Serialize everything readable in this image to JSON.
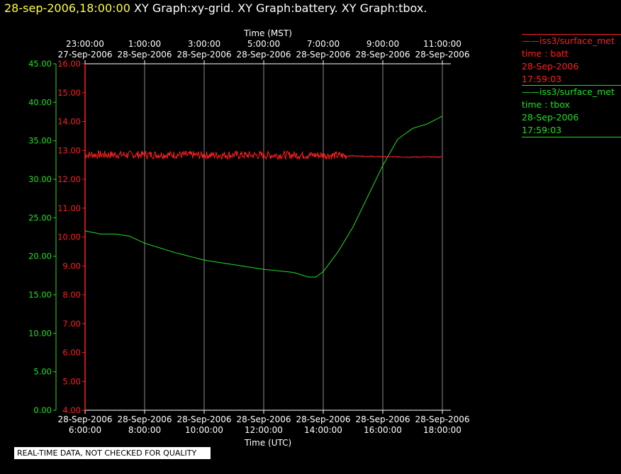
{
  "header": {
    "date_text": "28-sep-2006,18:00:00",
    "graphs_text": "XY Graph:xy-grid.  XY Graph:battery.  XY Graph:tbox."
  },
  "disclaimer": "REAL-TIME DATA, NOT CHECKED FOR QUALITY",
  "legend": [
    {
      "line1": "iss3/surface_met",
      "line2": "time : batt",
      "line3": "28-Sep-2006",
      "line4": "17:59:03",
      "color": "#ff2020"
    },
    {
      "line1": "iss3/surface_met",
      "line2": "time : tbox",
      "line3": "28-Sep-2006",
      "line4": "17:59:03",
      "color": "#20e020"
    }
  ],
  "chart_data": {
    "type": "line",
    "top_axis": {
      "title": "Time (MST)",
      "ticks": [
        {
          "t": "23:00:00",
          "d": "27-Sep-2006"
        },
        {
          "t": "1:00:00",
          "d": "28-Sep-2006"
        },
        {
          "t": "3:00:00",
          "d": "28-Sep-2006"
        },
        {
          "t": "5:00:00",
          "d": "28-Sep-2006"
        },
        {
          "t": "7:00:00",
          "d": "28-Sep-2006"
        },
        {
          "t": "9:00:00",
          "d": "28-Sep-2006"
        },
        {
          "t": "11:00:00",
          "d": "28-Sep-2006"
        }
      ]
    },
    "bottom_axis": {
      "title": "Time (UTC)",
      "ticks": [
        {
          "d": "28-Sep-2006",
          "t": "6:00:00"
        },
        {
          "d": "28-Sep-2006",
          "t": "8:00:00"
        },
        {
          "d": "28-Sep-2006",
          "t": "10:00:00"
        },
        {
          "d": "28-Sep-2006",
          "t": "12:00:00"
        },
        {
          "d": "28-Sep-2006",
          "t": "14:00:00"
        },
        {
          "d": "28-Sep-2006",
          "t": "16:00:00"
        },
        {
          "d": "28-Sep-2006",
          "t": "18:00:00"
        }
      ],
      "xlim_hours": [
        6,
        18.35
      ]
    },
    "y_tbox": {
      "color": "#20e020",
      "ylim": [
        0,
        45
      ],
      "ticks": [
        "0.00",
        "5.00",
        "10.00",
        "15.00",
        "20.00",
        "25.00",
        "30.00",
        "35.00",
        "40.00",
        "45.00"
      ]
    },
    "y_batt": {
      "color": "#ff2020",
      "ylim": [
        4,
        16
      ],
      "ticks": [
        "4.00",
        "5.00",
        "6.00",
        "7.00",
        "8.00",
        "9.00",
        "10.00",
        "11.00",
        "12.00",
        "13.00",
        "14.00",
        "15.00",
        "16.00"
      ]
    },
    "grid": true,
    "series": [
      {
        "key": "batt",
        "color": "#ff2020",
        "hours": [
          6,
          7,
          8,
          9,
          10,
          11,
          12,
          13,
          14,
          15,
          16,
          17,
          18
        ],
        "values": [
          12.85,
          12.85,
          12.85,
          12.85,
          12.83,
          12.84,
          12.83,
          12.84,
          12.83,
          12.81,
          12.78,
          12.77,
          12.77
        ],
        "noise_until_hour": 14.8
      },
      {
        "key": "tbox",
        "color": "#20e020",
        "hours": [
          6,
          6.5,
          7,
          7.5,
          8,
          9,
          10,
          11,
          12,
          12.5,
          13,
          13.5,
          13.75,
          14,
          14.5,
          15,
          15.5,
          16,
          16.5,
          17,
          17.5,
          18
        ],
        "values": [
          23.3,
          22.9,
          22.9,
          22.6,
          21.7,
          20.5,
          19.5,
          18.9,
          18.3,
          18.1,
          17.9,
          17.3,
          17.3,
          18.0,
          20.6,
          23.8,
          27.8,
          31.8,
          35.2,
          36.6,
          37.2,
          38.2
        ]
      }
    ]
  }
}
